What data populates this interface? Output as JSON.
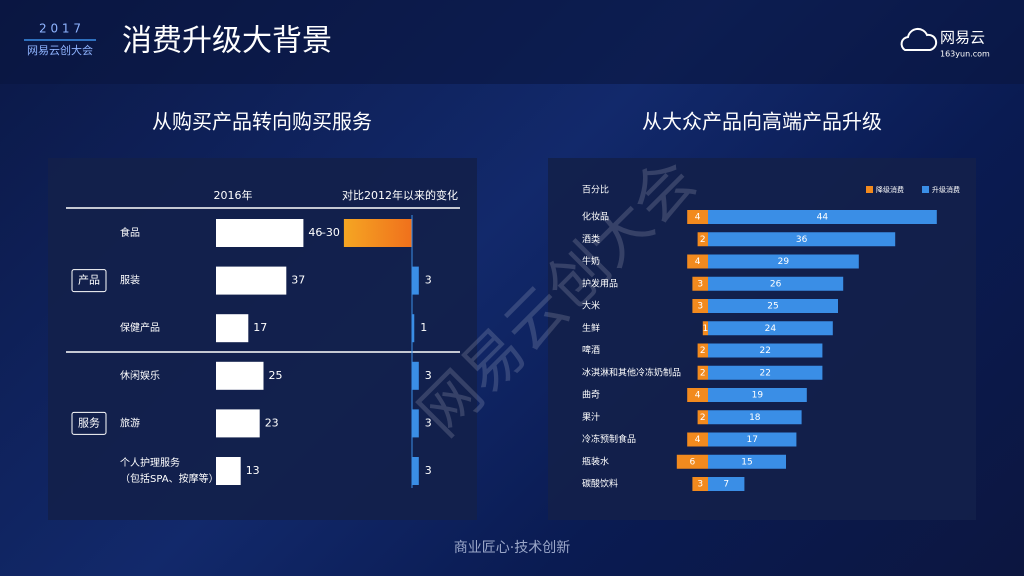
{
  "header": {
    "year": "2 0 1 7",
    "event": "网易云创大会",
    "title": "消费升级大背景",
    "logo": "网易云",
    "logo_url": "163yun.com"
  },
  "watermark": "网易云创大会",
  "footer": "商业匠心·技术创新",
  "chart_data": [
    {
      "type": "bar",
      "title": "从购买产品转向购买服务",
      "categories": [
        "食品",
        "服装",
        "保健产品",
        "休闲娱乐",
        "旅游",
        "个人护理服务\n（包括SPA、按摩等）"
      ],
      "groups": [
        {
          "name": "产品",
          "start": 0,
          "end": 2
        },
        {
          "name": "服务",
          "start": 3,
          "end": 5
        }
      ],
      "series": [
        {
          "name": "2016年",
          "color": "#ffffff",
          "values": [
            46,
            37,
            17,
            25,
            23,
            13
          ]
        },
        {
          "name": "对比2012年以来的变化",
          "color": "#3a8ee6",
          "negative_color": "#f28a1e",
          "values": [
            -30,
            3,
            1,
            3,
            3,
            3
          ],
          "value_labels": [
            "–30",
            "3",
            "1",
            "3",
            "3",
            "3"
          ]
        }
      ]
    },
    {
      "type": "diverging-bar",
      "title": "从大众产品向高端产品升级",
      "axis_label": "百分比",
      "categories": [
        "化妆品",
        "酒类",
        "牛奶",
        "护发用品",
        "大米",
        "生鲜",
        "啤酒",
        "冰淇淋和其他冷冻奶制品",
        "曲奇",
        "果汁",
        "冷冻预制食品",
        "瓶装水",
        "碳酸饮料"
      ],
      "series": [
        {
          "name": "降级消费",
          "color": "#f28a1e",
          "values": [
            4,
            2,
            4,
            3,
            3,
            1,
            2,
            2,
            4,
            2,
            4,
            6,
            3
          ]
        },
        {
          "name": "升级消费",
          "color": "#3a8ee6",
          "values": [
            44,
            36,
            29,
            26,
            25,
            24,
            22,
            22,
            19,
            18,
            17,
            15,
            7
          ]
        }
      ],
      "legend": "top-right"
    }
  ]
}
